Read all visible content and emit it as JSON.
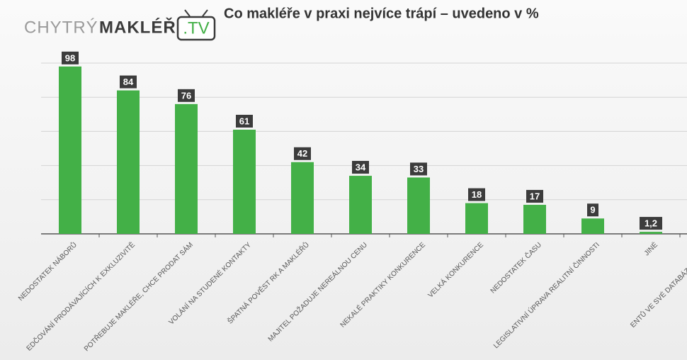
{
  "logo": {
    "first": "CHYTRÝ",
    "second": "MAKLÉŘ",
    "third": ".TV"
  },
  "chart_data": {
    "type": "bar",
    "title": "Co makléře v praxi nejvíce trápí – uvedeno v %",
    "categories": [
      "NEDOSTATEK NÁBORŮ",
      "EDČOVÁNÍ PRODÁVAJÍCÍCH K EXKLUZIVITĚ",
      "POTŘEBUJE MAKLÉŘE, CHCE PRODAT SÁM",
      "VOLÁNÍ NA STUDENÉ KONTAKTY",
      "ŠPATNÁ POVĚST RK A MAKLÉŘŮ",
      "MAJITEL POŽADUJE NEREÁLNOU CENU",
      "NEKALÉ PRAKTIKY KONKURENCE",
      "VELKÁ KONKURENCE",
      "NEDOSTATEK ČASU",
      "LEGISLATIVNÍ ÚPRAVA REALITNÍ ČINNOSTI",
      "JINÉ",
      "ENTŮ VE SVÉ DATABÁZI, NETRÁPÍ"
    ],
    "values": [
      98,
      84,
      76,
      61,
      42,
      34,
      33,
      18,
      17,
      9,
      1.2,
      null
    ],
    "value_labels": [
      "98",
      "84",
      "76",
      "61",
      "42",
      "34",
      "33",
      "18",
      "17",
      "9",
      "1,2",
      null
    ],
    "color": "#43b047",
    "ylim": [
      0,
      100
    ],
    "yticks": [
      0,
      20,
      40,
      60,
      80,
      100
    ],
    "grid": true
  }
}
